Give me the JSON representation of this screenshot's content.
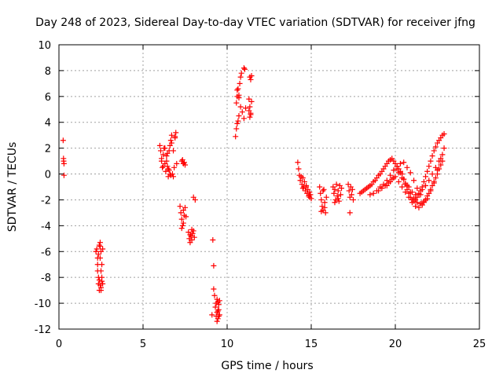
{
  "chart_data": {
    "type": "scatter",
    "title": "Day 248 of 2023, Sidereal Day-to-day VTEC variation (SDTVAR) for receiver jfng",
    "xlabel": "GPS time / hours",
    "ylabel": "SDTVAR / TECUs",
    "xlim": [
      0,
      25
    ],
    "ylim": [
      -12,
      10
    ],
    "xticks": [
      0,
      5,
      10,
      15,
      20,
      25
    ],
    "yticks": [
      -12,
      -10,
      -8,
      -6,
      -4,
      -2,
      0,
      2,
      4,
      6,
      8,
      10
    ],
    "grid": true,
    "marker": "plus",
    "color": "#ff0000",
    "series": [
      {
        "name": "SDTVAR",
        "x": [
          0.25,
          0.27,
          0.28,
          0.3,
          0.3,
          2.2,
          2.25,
          2.3,
          2.3,
          2.35,
          2.35,
          2.4,
          2.4,
          2.45,
          2.45,
          2.5,
          2.5,
          2.55,
          2.55,
          2.6,
          2.3,
          2.35,
          2.4,
          2.45,
          2.5,
          2.55,
          2.6,
          2.45,
          2.5,
          6.0,
          6.05,
          6.1,
          6.15,
          6.2,
          6.25,
          6.3,
          6.35,
          6.4,
          6.45,
          6.5,
          6.55,
          6.6,
          6.65,
          6.7,
          6.75,
          6.8,
          6.85,
          6.9,
          6.95,
          7.0,
          6.1,
          6.2,
          6.3,
          6.4,
          6.5,
          6.6,
          6.7,
          6.8,
          6.9,
          6.45,
          6.55,
          6.65,
          7.3,
          7.35,
          7.4,
          7.45,
          7.5,
          7.2,
          7.25,
          7.3,
          7.35,
          7.4,
          7.45,
          7.5,
          7.55,
          7.3,
          7.4,
          7.7,
          7.75,
          7.8,
          7.85,
          7.9,
          7.95,
          8.0,
          8.05,
          8.1,
          7.8,
          7.9,
          8.0,
          9.1,
          9.15,
          9.2,
          9.2,
          9.25,
          9.3,
          9.35,
          9.35,
          9.4,
          9.4,
          9.45,
          9.45,
          9.5,
          9.5,
          9.55,
          9.55,
          9.4,
          9.5,
          9.45,
          10.5,
          10.55,
          10.6,
          10.65,
          10.7,
          10.55,
          10.6,
          10.65,
          10.7,
          10.75,
          10.8,
          10.85,
          10.6,
          10.7,
          10.8,
          10.9,
          11.0,
          11.0,
          11.05,
          11.1,
          11.3,
          11.35,
          11.4,
          11.3,
          11.35,
          11.4,
          11.45,
          11.35,
          11.4,
          11.45,
          14.2,
          14.25,
          14.3,
          14.35,
          14.4,
          14.45,
          14.5,
          14.55,
          14.6,
          14.65,
          14.7,
          14.75,
          14.8,
          14.85,
          14.9,
          14.95,
          15.0,
          14.5,
          14.7,
          14.9,
          15.5,
          15.55,
          15.6,
          15.65,
          15.7,
          15.75,
          15.8,
          15.85,
          15.9,
          15.6,
          15.7,
          15.8,
          16.3,
          16.35,
          16.4,
          16.45,
          16.5,
          16.55,
          16.6,
          16.65,
          16.7,
          16.75,
          16.8,
          16.4,
          16.6,
          17.2,
          17.25,
          17.3,
          17.35,
          17.4,
          17.45,
          17.5,
          17.3,
          17.9,
          18.0,
          18.1,
          18.2,
          18.3,
          18.4,
          18.5,
          18.6,
          18.7,
          18.8,
          18.9,
          19.0,
          19.1,
          19.2,
          19.3,
          19.4,
          19.5,
          19.6,
          19.7,
          19.8,
          19.9,
          20.0,
          20.1,
          20.2,
          20.3,
          20.4,
          20.5,
          20.6,
          20.7,
          20.8,
          20.9,
          21.0,
          21.1,
          21.2,
          21.3,
          21.4,
          21.5,
          21.6,
          21.7,
          21.8,
          21.9,
          22.0,
          22.1,
          22.2,
          22.3,
          22.4,
          22.5,
          22.6,
          22.7,
          22.8,
          22.9,
          18.5,
          18.7,
          18.9,
          19.1,
          19.3,
          19.5,
          19.7,
          19.9,
          20.1,
          20.3,
          20.5,
          20.7,
          20.9,
          21.1,
          21.3,
          21.5,
          21.7,
          21.9,
          22.1,
          22.3,
          22.5,
          22.7,
          19.0,
          19.2,
          19.4,
          19.6,
          19.8,
          20.0,
          20.2,
          20.4,
          20.6,
          20.8,
          21.0,
          21.2,
          21.4,
          21.6,
          21.8,
          22.0,
          22.2,
          22.4,
          22.6,
          22.8,
          20.2,
          20.4,
          20.6,
          20.8,
          21.0,
          21.2,
          21.4,
          21.6,
          21.8,
          22.0,
          22.2,
          22.4,
          22.6,
          22.8,
          19.5,
          19.7,
          19.9,
          20.1,
          20.3,
          20.5,
          20.7,
          20.9,
          21.1,
          21.3,
          21.5,
          21.7,
          21.9,
          22.1,
          22.3,
          22.5,
          22.7,
          22.9
        ],
        "y": [
          2.6,
          1.2,
          1.0,
          0.8,
          -0.1,
          -6.0,
          -5.8,
          -6.5,
          -7.5,
          -6.2,
          -8.0,
          -5.5,
          -8.2,
          -5.3,
          -8.6,
          -6.0,
          -8.8,
          -7.0,
          -8.3,
          -5.8,
          -7.0,
          -8.5,
          -9.0,
          -6.5,
          -7.5,
          -8.0,
          -8.5,
          -5.6,
          -9.0,
          2.2,
          1.8,
          1.0,
          0.5,
          1.5,
          2.0,
          0.8,
          0.2,
          1.4,
          0.6,
          -0.2,
          1.8,
          2.2,
          2.6,
          3.0,
          0.0,
          -0.2,
          0.5,
          2.8,
          3.2,
          0.8,
          1.2,
          0.6,
          2.0,
          1.0,
          0.4,
          0.0,
          2.4,
          1.8,
          2.9,
          1.6,
          0.3,
          -0.1,
          1.0,
          1.1,
          0.8,
          0.9,
          0.7,
          -2.5,
          -3.0,
          -3.5,
          -4.0,
          -2.8,
          -3.2,
          -2.6,
          -3.3,
          -4.2,
          -3.8,
          -4.5,
          -5.0,
          -5.3,
          -4.8,
          -5.1,
          -4.6,
          -4.4,
          -4.9,
          -2.0,
          -4.7,
          -4.3,
          -1.8,
          -10.9,
          -5.1,
          -7.1,
          -8.9,
          -9.4,
          -10.3,
          -10.0,
          -11.0,
          -9.7,
          -10.7,
          -9.9,
          -11.2,
          -10.1,
          -10.5,
          -9.8,
          -10.9,
          -11.4,
          -11.0,
          -10.6,
          2.9,
          3.5,
          3.9,
          4.1,
          4.5,
          5.5,
          6.0,
          6.6,
          5.9,
          7.0,
          7.5,
          7.8,
          6.5,
          6.1,
          5.2,
          4.8,
          4.3,
          8.2,
          8.1,
          5.1,
          5.8,
          5.2,
          4.7,
          4.9,
          7.5,
          7.3,
          5.6,
          4.4,
          4.6,
          7.6,
          0.9,
          0.4,
          -0.1,
          -0.5,
          -0.2,
          -0.8,
          -0.3,
          -1.0,
          -0.6,
          -1.3,
          -0.9,
          -1.5,
          -1.2,
          -1.7,
          -1.4,
          -1.6,
          -1.9,
          -1.1,
          -1.0,
          -1.8,
          -1.0,
          -1.5,
          -2.0,
          -2.5,
          -2.8,
          -1.2,
          -2.2,
          -3.0,
          -1.8,
          -2.9,
          -1.3,
          -2.6,
          -1.0,
          -1.5,
          -1.2,
          -2.0,
          -0.8,
          -1.7,
          -1.3,
          -2.1,
          -0.9,
          -1.6,
          -1.1,
          -2.2,
          -1.9,
          -0.8,
          -1.3,
          -1.8,
          -1.0,
          -1.6,
          -1.2,
          -2.0,
          -3.0,
          -1.5,
          -1.4,
          -1.3,
          -1.2,
          -1.1,
          -1.0,
          -0.9,
          -0.8,
          -0.6,
          -0.5,
          -0.3,
          -0.1,
          0.0,
          0.2,
          0.4,
          0.6,
          0.8,
          1.0,
          1.1,
          1.2,
          1.0,
          0.8,
          0.6,
          0.4,
          0.2,
          0.0,
          -0.4,
          -0.8,
          -1.2,
          -1.5,
          -1.8,
          -2.0,
          -2.1,
          -2.0,
          -1.8,
          -1.6,
          -1.3,
          -1.0,
          -0.6,
          -0.2,
          0.2,
          0.6,
          1.0,
          1.4,
          1.8,
          2.1,
          2.4,
          2.6,
          2.8,
          3.0,
          3.1,
          -1.6,
          -1.5,
          -1.3,
          -1.0,
          -0.8,
          -0.5,
          -0.1,
          0.3,
          0.4,
          0.1,
          -0.4,
          -0.9,
          -1.4,
          -1.9,
          -2.2,
          -2.3,
          -2.1,
          -1.7,
          -1.2,
          -0.6,
          0.0,
          0.7,
          -1.3,
          -1.1,
          -0.9,
          -0.7,
          -0.4,
          -0.2,
          0.1,
          -0.3,
          -0.7,
          -1.0,
          -1.4,
          -1.6,
          -1.5,
          -1.2,
          -0.9,
          -0.5,
          0.0,
          0.5,
          1.0,
          1.5,
          -0.6,
          -1.0,
          -1.4,
          -1.8,
          -2.2,
          -2.5,
          -2.6,
          -2.4,
          -2.0,
          -1.5,
          -0.9,
          -0.3,
          0.4,
          1.0,
          -0.9,
          -0.6,
          -0.3,
          0.6,
          0.8,
          0.9,
          0.5,
          0.1,
          -0.5,
          -1.1,
          -1.6,
          -2.2,
          -1.9,
          -1.3,
          -0.7,
          0.3,
          1.2,
          2.0
        ]
      }
    ]
  }
}
